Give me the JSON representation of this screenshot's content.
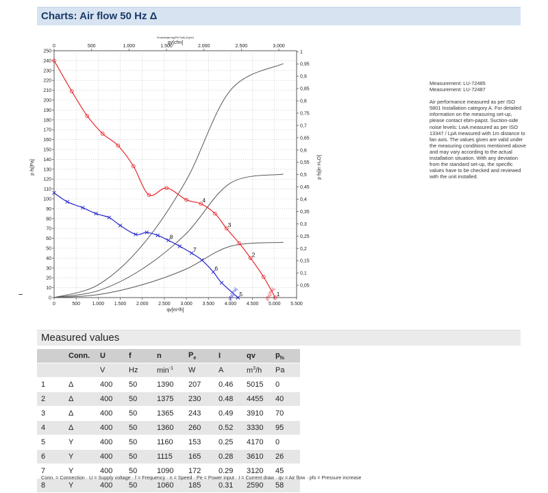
{
  "header": {
    "title": "Charts: Air flow 50 Hz Δ"
  },
  "chart_data": {
    "type": "line",
    "top_axis_title": "qv[cfm]",
    "top_axis_subtitle": "Drucksteigerung(Pfa Total) (Kg/m²)",
    "bottom_axis_title": "qv[m³/h]",
    "left_axis_title": "p fs[Pa]",
    "right_axis_title": "p fs[in H₂O]",
    "x_range": [
      0,
      5500
    ],
    "y_range": [
      0,
      250
    ],
    "x_ticks": [
      0,
      500,
      1000,
      1500,
      2000,
      2500,
      3000,
      3500,
      4000,
      4500,
      5000,
      5500
    ],
    "x_tick_labels": [
      "0",
      "500",
      "1.000",
      "1.500",
      "2.000",
      "2.500",
      "3.000",
      "3.500",
      "4.000",
      "4.500",
      "5.000",
      "5.500"
    ],
    "top_ticks_cfm": [
      0,
      500,
      1000,
      1500,
      2000,
      2500,
      3000
    ],
    "top_tick_labels": [
      "0",
      "500",
      "1.000",
      "1.500",
      "2.000",
      "2.500",
      "3.000"
    ],
    "y_ticks": [
      0,
      10,
      20,
      30,
      40,
      50,
      60,
      70,
      80,
      90,
      100,
      110,
      120,
      130,
      140,
      150,
      160,
      170,
      180,
      190,
      200,
      210,
      220,
      230,
      240,
      250
    ],
    "y_tick_labels": [
      "0",
      "10",
      "20",
      "30",
      "40",
      "50",
      "60",
      "70",
      "80",
      "90",
      "100",
      "110",
      "120",
      "130",
      "140",
      "150",
      "160",
      "170",
      "180",
      "190",
      "200",
      "210",
      "220",
      "230",
      "240",
      "250"
    ],
    "right_ticks_inh2o": [
      0.05,
      0.1,
      0.15,
      0.2,
      0.25,
      0.3,
      0.35,
      0.4,
      0.45,
      0.5,
      0.55,
      0.6,
      0.65,
      0.7,
      0.75,
      0.8,
      0.85,
      0.9,
      0.95,
      1
    ],
    "right_tick_labels": [
      "0,05",
      "0,1",
      "0,15",
      "0,2",
      "0,25",
      "0,3",
      "0,35",
      "0,4",
      "0,45",
      "0,5",
      "0,55",
      "0,6",
      "0,65",
      "0,7",
      "0,75",
      "0,8",
      "0,85",
      "0,9",
      "0,95",
      "1"
    ],
    "grid": true,
    "series": [
      {
        "color": "#e8242b",
        "marker": "circle",
        "label_text": "pfs[Pa]",
        "points": [
          [
            0,
            240
          ],
          [
            400,
            209
          ],
          [
            750,
            184
          ],
          [
            1100,
            166
          ],
          [
            1450,
            154
          ],
          [
            1800,
            133
          ],
          [
            2150,
            104
          ],
          [
            2550,
            111
          ],
          [
            3000,
            99
          ],
          [
            3330,
            95
          ],
          [
            3650,
            85
          ],
          [
            3910,
            70
          ],
          [
            4200,
            55
          ],
          [
            4455,
            40
          ],
          [
            4750,
            21
          ],
          [
            5015,
            0
          ]
        ]
      },
      {
        "color": "#2222cc",
        "marker": "x",
        "label_text": "pfs[Pa]",
        "points": [
          [
            0,
            106
          ],
          [
            300,
            97
          ],
          [
            650,
            91
          ],
          [
            950,
            85
          ],
          [
            1250,
            81
          ],
          [
            1500,
            73
          ],
          [
            1850,
            64
          ],
          [
            2100,
            66
          ],
          [
            2350,
            63
          ],
          [
            2590,
            58
          ],
          [
            2850,
            52
          ],
          [
            3120,
            45
          ],
          [
            3350,
            38
          ],
          [
            3610,
            26
          ],
          [
            3800,
            15
          ],
          [
            4170,
            0
          ]
        ]
      }
    ],
    "system_curves": [
      {
        "points": [
          [
            0,
            0
          ],
          [
            1000,
            13
          ],
          [
            2000,
            53
          ],
          [
            3000,
            119
          ],
          [
            4000,
            210
          ],
          [
            5200,
            237
          ]
        ]
      },
      {
        "points": [
          [
            0,
            0
          ],
          [
            1000,
            7
          ],
          [
            2000,
            29
          ],
          [
            3000,
            65
          ],
          [
            4000,
            116
          ],
          [
            5200,
            125
          ]
        ]
      },
      {
        "points": [
          [
            0,
            0
          ],
          [
            1000,
            3
          ],
          [
            2000,
            13
          ],
          [
            3000,
            29
          ],
          [
            4000,
            52
          ],
          [
            5200,
            56
          ]
        ]
      }
    ],
    "operating_points": [
      {
        "label": "1",
        "x": 5015,
        "y": 0
      },
      {
        "label": "2",
        "x": 4455,
        "y": 40
      },
      {
        "label": "3",
        "x": 3910,
        "y": 70
      },
      {
        "label": "4",
        "x": 3330,
        "y": 95
      },
      {
        "label": "5",
        "x": 4170,
        "y": 0
      },
      {
        "label": "6",
        "x": 3610,
        "y": 26
      },
      {
        "label": "7",
        "x": 3120,
        "y": 45
      },
      {
        "label": "8",
        "x": 2590,
        "y": 58
      }
    ]
  },
  "notes": {
    "measurement_1": "Measurement: LU-72485",
    "measurement_2": "Measurement: LU-72487",
    "paragraph": "Air performance measured as per ISO 5801 Installation category A. For detailed information on the measuring set-up, please contact ebm-papst. Suction-side noise levels: LwA measured as per ISO 13347 / LpA measured with 1m distance to fan axis. The values given are valid under the measuring conditions mentioned above and may vary according to the actual installation situation. With any deviation from the standard set-up, the specific values have to be checked and reviewed with the unit installed."
  },
  "measured": {
    "title": "Measured values",
    "headers": [
      "",
      "Conn.",
      "U",
      "f",
      "n",
      "P",
      "I",
      "qv",
      "p"
    ],
    "header_subs": {
      "P": "e",
      "p": "fs"
    },
    "units": [
      "",
      "",
      "V",
      "Hz",
      "min",
      "W",
      "A",
      "m",
      "Pa"
    ],
    "unit_sups": {
      "min": "-1",
      "m": "3"
    },
    "unit_suffixes": {
      "m": "/h"
    },
    "rows": [
      [
        "1",
        "Δ",
        "400",
        "50",
        "1390",
        "207",
        "0.46",
        "5015",
        "0"
      ],
      [
        "2",
        "Δ",
        "400",
        "50",
        "1375",
        "230",
        "0.48",
        "4455",
        "40"
      ],
      [
        "3",
        "Δ",
        "400",
        "50",
        "1365",
        "243",
        "0.49",
        "3910",
        "70"
      ],
      [
        "4",
        "Δ",
        "400",
        "50",
        "1360",
        "260",
        "0.52",
        "3330",
        "95"
      ],
      [
        "5",
        "Y",
        "400",
        "50",
        "1160",
        "153",
        "0.25",
        "4170",
        "0"
      ],
      [
        "6",
        "Y",
        "400",
        "50",
        "1115",
        "165",
        "0.28",
        "3610",
        "26"
      ],
      [
        "7",
        "Y",
        "400",
        "50",
        "1090",
        "172",
        "0.29",
        "3120",
        "45"
      ],
      [
        "8",
        "Y",
        "400",
        "50",
        "1060",
        "185",
        "0.31",
        "2590",
        "58"
      ]
    ],
    "legend_text": "Conn. = Connection · U = Supply voltage · f = Frequency · n = Speed · Pe = Power input · I = Current draw · qv = Air flow · pfs = Pressure increase"
  }
}
